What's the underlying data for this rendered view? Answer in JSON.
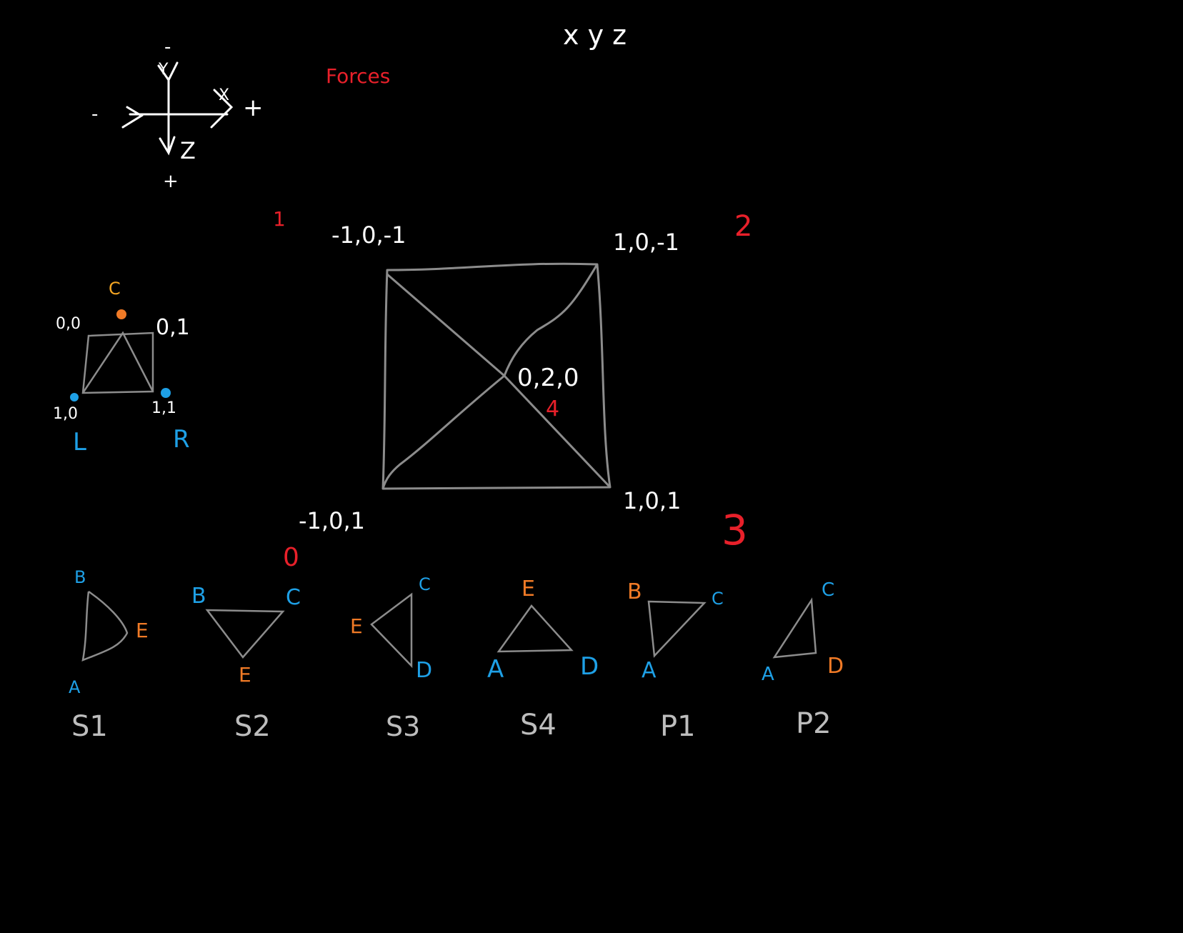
{
  "colors": {
    "background": "#000000",
    "line": "#8c8c8c",
    "white": "#ffffff",
    "red": "#e8202a",
    "blue": "#1ea0e6",
    "orange": "#f07a26",
    "yellow": "#f5a623"
  },
  "header": {
    "axes_title": "x y z",
    "forces_label": "Forces"
  },
  "axes_sketch": {
    "neg_top": "-",
    "y_label": "Y",
    "neg_left": "-",
    "x_label": "X",
    "pos_right": "+",
    "z_label": "Z",
    "pos_bottom": "+"
  },
  "uv_sketch": {
    "c_label": "C",
    "top_left": "0,0",
    "top_right": "0,1",
    "bottom_left": "1,0",
    "bottom_right": "1,1",
    "l_label": "L",
    "r_label": "R"
  },
  "pyramid": {
    "corner_1_index": "1",
    "corner_1_coords": "-1,0,-1",
    "corner_2_index": "2",
    "corner_2_coords": "1,0,-1",
    "center_coords": "0,2,0",
    "center_index": "4",
    "corner_3_coords": "1,0,1",
    "corner_3_index": "3",
    "corner_0_coords": "-1,0,1",
    "corner_0_index": "0"
  },
  "faces": [
    {
      "name": "S1",
      "labels": [
        "B",
        "E",
        "A"
      ]
    },
    {
      "name": "S2",
      "labels": [
        "B",
        "C",
        "E"
      ]
    },
    {
      "name": "S3",
      "labels": [
        "C",
        "E",
        "D"
      ]
    },
    {
      "name": "S4",
      "labels": [
        "E",
        "A",
        "D"
      ]
    },
    {
      "name": "P1",
      "labels": [
        "B",
        "C",
        "A"
      ]
    },
    {
      "name": "P2",
      "labels": [
        "C",
        "A",
        "D"
      ]
    }
  ]
}
